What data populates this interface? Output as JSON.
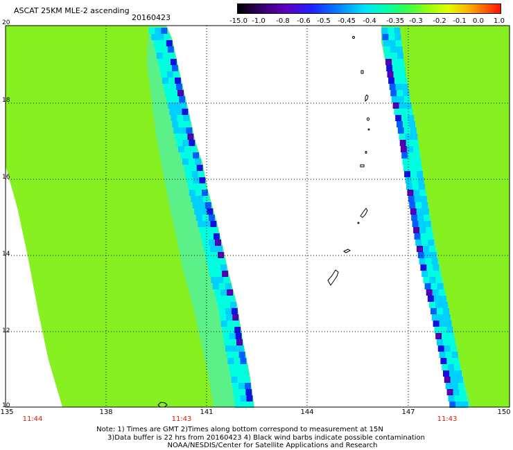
{
  "header": {
    "title": "ASCAT 25KM MLE-2 ascending",
    "date": "20160423"
  },
  "colorbar": {
    "labels": [
      "-15.0",
      "-1.0",
      "-0.8",
      "-0.6",
      "-0.5",
      "-0.45",
      "-0.4",
      "-0.35",
      "-0.3",
      "-0.2",
      "-0.1",
      "0.0",
      "1.0"
    ],
    "colors": [
      "#000000",
      "#5a00a0",
      "#1f00ff",
      "#0070ff",
      "#00c8ff",
      "#00ffd8",
      "#00ff90",
      "#60ff20",
      "#a8ff10",
      "#f0ff00",
      "#ffa000",
      "#ff4000",
      "#ff0000"
    ]
  },
  "map": {
    "lat_labels": [
      "20",
      "18",
      "16",
      "14",
      "12",
      "10"
    ],
    "lon_labels": [
      "135",
      "138",
      "141",
      "144",
      "147",
      "150"
    ],
    "time_labels": [
      "11:44",
      "11:43",
      "11:43"
    ],
    "swath_fill": "#86f020",
    "edge_colors": [
      "#00ffe0",
      "#00d0ff",
      "#0060ff",
      "#1010e0",
      "#5000b0"
    ]
  },
  "notes": {
    "line1": "Note: 1) Times are GMT 2)Times along bottom correspond to measurement at 15N",
    "line2": "3)Data buffer is 22 hrs from 20160423 4) Black wind barbs indicate possible contamination",
    "line3": "NOAA/NESDIS/Center for Satellite Applications and Research"
  }
}
